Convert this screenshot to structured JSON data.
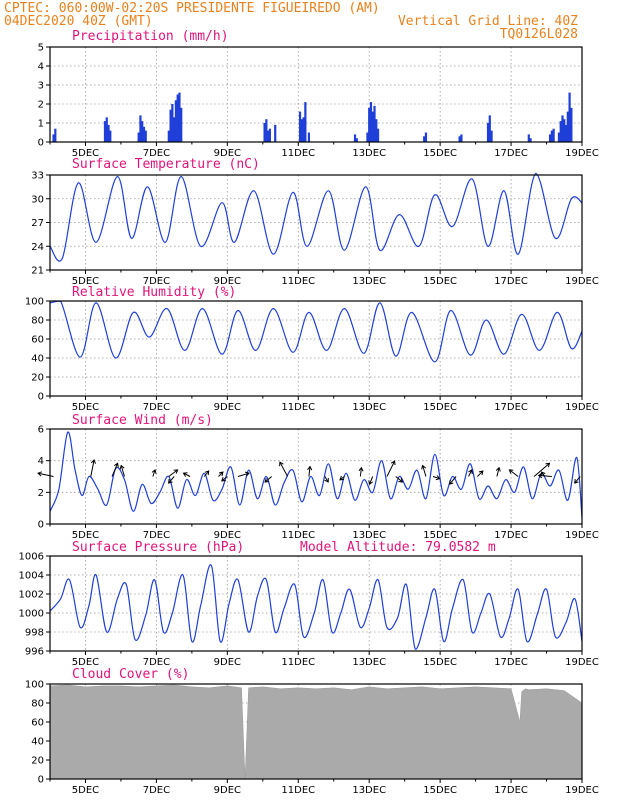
{
  "header": {
    "line1_left": "CPTEC:   060:00W-02:20S   PRESIDENTE FIGUEIREDO (AM)",
    "line2_left": "04DEC2020 40Z (GMT)",
    "line2_right": "Vertical Grid Line: 40Z",
    "line3_right": "TQ0126L028"
  },
  "colors": {
    "header": "#e8821e",
    "title": "#e0147a",
    "line": "#1f3fd8",
    "cloud": "#aaaaaa",
    "grid": "#999999"
  },
  "chart_data": [
    {
      "type": "bar",
      "title": "Precipitation (mm/h)",
      "ylim": [
        0,
        5
      ],
      "yticks": [
        "0",
        "1",
        "2",
        "3",
        "4",
        "5"
      ],
      "xlim": [
        0,
        15
      ],
      "xticks": [
        "5DEC",
        "7DEC",
        "9DEC",
        "11DEC",
        "13DEC",
        "15DEC",
        "17DEC",
        "19DEC"
      ],
      "x": [
        0.1,
        0.15,
        1.55,
        1.6,
        1.65,
        1.7,
        2.5,
        2.55,
        2.6,
        2.65,
        2.7,
        3.35,
        3.4,
        3.45,
        3.5,
        3.55,
        3.6,
        3.65,
        3.7,
        6.05,
        6.1,
        6.15,
        6.2,
        6.35,
        7.05,
        7.1,
        7.15,
        7.2,
        7.3,
        8.6,
        8.65,
        8.95,
        9.0,
        9.05,
        9.1,
        9.15,
        9.2,
        9.25,
        10.55,
        10.6,
        11.55,
        11.6,
        12.35,
        12.4,
        12.45,
        13.5,
        13.55,
        14.1,
        14.15,
        14.2,
        14.35,
        14.4,
        14.45,
        14.5,
        14.55,
        14.6,
        14.65,
        14.7
      ],
      "values": [
        0.4,
        0.7,
        1.1,
        1.3,
        0.9,
        0.6,
        0.5,
        1.4,
        1.1,
        0.8,
        0.6,
        0.6,
        1.7,
        2.0,
        1.3,
        2.2,
        2.5,
        2.6,
        1.8,
        1.0,
        1.2,
        0.6,
        0.7,
        0.9,
        1.6,
        1.2,
        1.3,
        2.1,
        0.5,
        0.4,
        0.2,
        0.5,
        1.8,
        2.1,
        1.6,
        1.9,
        1.2,
        0.7,
        0.3,
        0.5,
        0.3,
        0.4,
        1.0,
        1.4,
        0.6,
        0.4,
        0.2,
        0.4,
        0.6,
        0.7,
        0.5,
        1.1,
        1.4,
        1.2,
        0.9,
        1.6,
        2.6,
        1.8
      ]
    },
    {
      "type": "line",
      "title": "Surface Temperature (nC)",
      "ylim": [
        21,
        33
      ],
      "yticks": [
        "21",
        "24",
        "27",
        "30",
        "33"
      ],
      "xlim": [
        0,
        15
      ],
      "xticks": [
        "5DEC",
        "7DEC",
        "9DEC",
        "11DEC",
        "13DEC",
        "15DEC",
        "17DEC",
        "19DEC"
      ],
      "x": [
        0,
        0.35,
        0.8,
        1.3,
        1.9,
        2.3,
        2.75,
        3.25,
        3.7,
        4.25,
        4.85,
        5.2,
        5.75,
        6.3,
        6.85,
        7.25,
        7.85,
        8.3,
        8.9,
        9.3,
        9.85,
        10.4,
        10.85,
        11.35,
        11.9,
        12.35,
        12.8,
        13.2,
        13.7,
        14.25,
        14.7,
        15
      ],
      "values": [
        24.0,
        22.5,
        32.0,
        24.5,
        32.8,
        25.0,
        31.5,
        24.5,
        32.8,
        24.0,
        29.5,
        24.5,
        31.0,
        23.0,
        30.8,
        24.0,
        31.0,
        23.5,
        31.5,
        23.5,
        28.0,
        24.0,
        30.5,
        26.5,
        32.5,
        24.0,
        31.0,
        23.0,
        33.2,
        25.0,
        30.0,
        29.5
      ]
    },
    {
      "type": "line",
      "title": "Relative Humidity (%)",
      "ylim": [
        0,
        100
      ],
      "yticks": [
        "0",
        "20",
        "40",
        "60",
        "80",
        "100"
      ],
      "xlim": [
        0,
        15
      ],
      "xticks": [
        "5DEC",
        "7DEC",
        "9DEC",
        "11DEC",
        "13DEC",
        "15DEC",
        "17DEC",
        "19DEC"
      ],
      "x": [
        0,
        0.3,
        0.85,
        1.3,
        1.85,
        2.35,
        2.8,
        3.3,
        3.8,
        4.3,
        4.85,
        5.3,
        5.8,
        6.3,
        6.85,
        7.3,
        7.8,
        8.3,
        8.85,
        9.3,
        9.75,
        10.2,
        10.85,
        11.3,
        11.85,
        12.3,
        12.8,
        13.3,
        13.8,
        14.3,
        14.7,
        15
      ],
      "values": [
        98,
        100,
        41,
        98,
        40,
        88,
        62,
        92,
        48,
        92,
        44,
        90,
        48,
        92,
        46,
        88,
        48,
        92,
        45,
        98,
        42,
        88,
        36,
        90,
        43,
        80,
        44,
        86,
        48,
        88,
        50,
        68
      ]
    },
    {
      "type": "line",
      "title": "Surface Wind (m/s)",
      "ylim": [
        0,
        6
      ],
      "yticks": [
        "0",
        "2",
        "4",
        "6"
      ],
      "xlim": [
        0,
        15
      ],
      "xticks": [
        "5DEC",
        "7DEC",
        "9DEC",
        "11DEC",
        "13DEC",
        "15DEC",
        "17DEC",
        "19DEC"
      ],
      "x": [
        0,
        0.25,
        0.5,
        0.7,
        0.9,
        1.1,
        1.35,
        1.6,
        1.85,
        2.1,
        2.35,
        2.6,
        2.85,
        3.1,
        3.35,
        3.6,
        3.85,
        4.1,
        4.35,
        4.6,
        4.85,
        5.1,
        5.35,
        5.6,
        5.85,
        6.1,
        6.35,
        6.6,
        6.85,
        7.1,
        7.35,
        7.6,
        7.85,
        8.1,
        8.35,
        8.6,
        8.85,
        9.1,
        9.35,
        9.6,
        9.85,
        10.1,
        10.35,
        10.6,
        10.85,
        11.1,
        11.35,
        11.6,
        11.85,
        12.1,
        12.35,
        12.6,
        12.85,
        13.1,
        13.35,
        13.6,
        13.85,
        14.1,
        14.35,
        14.6,
        14.85,
        15
      ],
      "values": [
        0.8,
        2.2,
        5.8,
        3.5,
        1.8,
        3.0,
        2.2,
        1.2,
        3.5,
        2.8,
        0.8,
        2.5,
        1.3,
        2.0,
        3.0,
        1.0,
        2.8,
        1.8,
        3.2,
        1.5,
        2.2,
        3.6,
        1.2,
        3.4,
        1.6,
        3.0,
        1.2,
        2.6,
        3.4,
        1.4,
        3.0,
        1.8,
        3.8,
        1.6,
        3.2,
        1.5,
        2.8,
        2.0,
        4.0,
        1.6,
        3.0,
        2.2,
        3.4,
        1.6,
        4.4,
        1.8,
        3.0,
        2.2,
        3.8,
        1.6,
        2.4,
        1.6,
        2.8,
        2.0,
        3.6,
        1.6,
        3.2,
        2.4,
        3.4,
        1.5,
        4.2,
        0.4
      ],
      "vectors": [
        {
          "x": 0.1,
          "u": -1.4,
          "v": 0.3
        },
        {
          "x": 1.15,
          "u": 0.3,
          "v": 1.5
        },
        {
          "x": 1.75,
          "u": 0.5,
          "v": 1.2
        },
        {
          "x": 2.1,
          "u": -0.3,
          "v": 1.0
        },
        {
          "x": 2.9,
          "u": 0.2,
          "v": 0.6
        },
        {
          "x": 3.35,
          "u": 0.8,
          "v": 0.6
        },
        {
          "x": 3.5,
          "u": -0.5,
          "v": -0.6
        },
        {
          "x": 3.95,
          "u": -0.6,
          "v": 0.3
        },
        {
          "x": 4.35,
          "u": 0.4,
          "v": 0.5
        },
        {
          "x": 4.75,
          "u": 0.4,
          "v": 0.4
        },
        {
          "x": 5.0,
          "u": -0.5,
          "v": -0.4
        },
        {
          "x": 5.3,
          "u": 1.0,
          "v": 0.3
        },
        {
          "x": 6.25,
          "u": -0.6,
          "v": -0.5
        },
        {
          "x": 6.7,
          "u": -0.7,
          "v": 1.3
        },
        {
          "x": 7.3,
          "u": 0.1,
          "v": 0.9
        },
        {
          "x": 7.75,
          "u": 0.3,
          "v": -0.5
        },
        {
          "x": 8.3,
          "u": -0.4,
          "v": -0.3
        },
        {
          "x": 8.75,
          "u": 0.1,
          "v": 0.8
        },
        {
          "x": 9.1,
          "u": -0.3,
          "v": -0.7
        },
        {
          "x": 9.5,
          "u": 0.7,
          "v": 1.4
        },
        {
          "x": 9.75,
          "u": 0.6,
          "v": -0.5
        },
        {
          "x": 10.6,
          "u": -0.3,
          "v": 1.0
        },
        {
          "x": 10.8,
          "u": 0.6,
          "v": -0.2
        },
        {
          "x": 11.45,
          "u": -0.6,
          "v": -0.7
        },
        {
          "x": 11.8,
          "u": 0.3,
          "v": 0.6
        },
        {
          "x": 12.05,
          "u": 0.5,
          "v": 0.5
        },
        {
          "x": 12.6,
          "u": 0.2,
          "v": 0.8
        },
        {
          "x": 13.2,
          "u": -0.8,
          "v": 0.6
        },
        {
          "x": 13.65,
          "u": 1.4,
          "v": 1.2
        },
        {
          "x": 13.95,
          "u": -0.3,
          "v": 0.4
        },
        {
          "x": 14.15,
          "u": -1.2,
          "v": 0.1
        },
        {
          "x": 14.95,
          "u": -0.5,
          "v": -0.6
        }
      ]
    },
    {
      "type": "line",
      "title": "Surface Pressure (hPa)",
      "annotation": "Model Altitude: 79.0582 m",
      "ylim": [
        996,
        1006
      ],
      "yticks": [
        "996",
        "998",
        "1000",
        "1002",
        "1004",
        "1006"
      ],
      "xlim": [
        0,
        15
      ],
      "xticks": [
        "5DEC",
        "7DEC",
        "9DEC",
        "11DEC",
        "13DEC",
        "15DEC",
        "17DEC",
        "19DEC"
      ],
      "x": [
        0,
        0.3,
        0.55,
        0.85,
        1.1,
        1.3,
        1.6,
        1.9,
        2.15,
        2.4,
        2.7,
        2.95,
        3.2,
        3.45,
        3.75,
        4.0,
        4.25,
        4.55,
        4.8,
        5.05,
        5.3,
        5.6,
        5.85,
        6.1,
        6.35,
        6.6,
        6.9,
        7.15,
        7.45,
        7.7,
        7.95,
        8.2,
        8.45,
        8.75,
        9.0,
        9.25,
        9.5,
        9.8,
        10.05,
        10.3,
        10.6,
        10.85,
        11.1,
        11.35,
        11.65,
        11.9,
        12.15,
        12.4,
        12.7,
        12.95,
        13.2,
        13.45,
        13.75,
        14.0,
        14.25,
        14.55,
        14.8,
        15
      ],
      "values": [
        1000.2,
        1001.5,
        1003.5,
        998.5,
        1000.8,
        1004.0,
        998.0,
        1001.5,
        1003.0,
        997.2,
        999.8,
        1003.5,
        998.0,
        1000.0,
        1004.0,
        997.0,
        1000.8,
        1005.0,
        997.0,
        1001.0,
        1003.5,
        998.0,
        1001.8,
        1003.5,
        998.0,
        1000.5,
        1003.0,
        997.5,
        1000.0,
        1003.5,
        998.0,
        1000.0,
        1002.5,
        998.5,
        1000.5,
        1003.5,
        998.5,
        999.5,
        1003.0,
        996.2,
        999.5,
        1002.5,
        997.0,
        1000.5,
        1003.5,
        998.0,
        1000.0,
        1002.0,
        997.5,
        999.5,
        1002.5,
        997.0,
        1000.0,
        1002.5,
        997.5,
        999.0,
        1001.5,
        997.0
      ]
    },
    {
      "type": "area",
      "title": "Cloud Cover (%)",
      "ylim": [
        0,
        100
      ],
      "yticks": [
        "0",
        "20",
        "40",
        "60",
        "80",
        "100"
      ],
      "xlim": [
        0,
        15
      ],
      "xticks": [
        "5DEC",
        "7DEC",
        "9DEC",
        "11DEC",
        "13DEC",
        "15DEC",
        "17DEC",
        "19DEC"
      ],
      "x": [
        0,
        0.5,
        1.0,
        1.5,
        2.0,
        2.5,
        3.0,
        3.5,
        4.0,
        4.5,
        5.0,
        5.4,
        5.5,
        5.6,
        6.0,
        6.5,
        7.0,
        7.5,
        8.0,
        8.5,
        9.0,
        9.5,
        10.0,
        10.5,
        11.0,
        11.5,
        12.0,
        12.5,
        13.0,
        13.25,
        13.3,
        13.4,
        13.5,
        14.0,
        14.5,
        15
      ],
      "values": [
        98,
        99,
        97,
        98,
        98,
        97,
        98,
        99,
        97,
        96,
        98,
        96,
        0,
        96,
        97,
        95,
        96,
        95,
        96,
        94,
        97,
        95,
        96,
        97,
        95,
        96,
        97,
        96,
        95,
        60,
        92,
        95,
        94,
        95,
        93,
        80
      ]
    }
  ]
}
